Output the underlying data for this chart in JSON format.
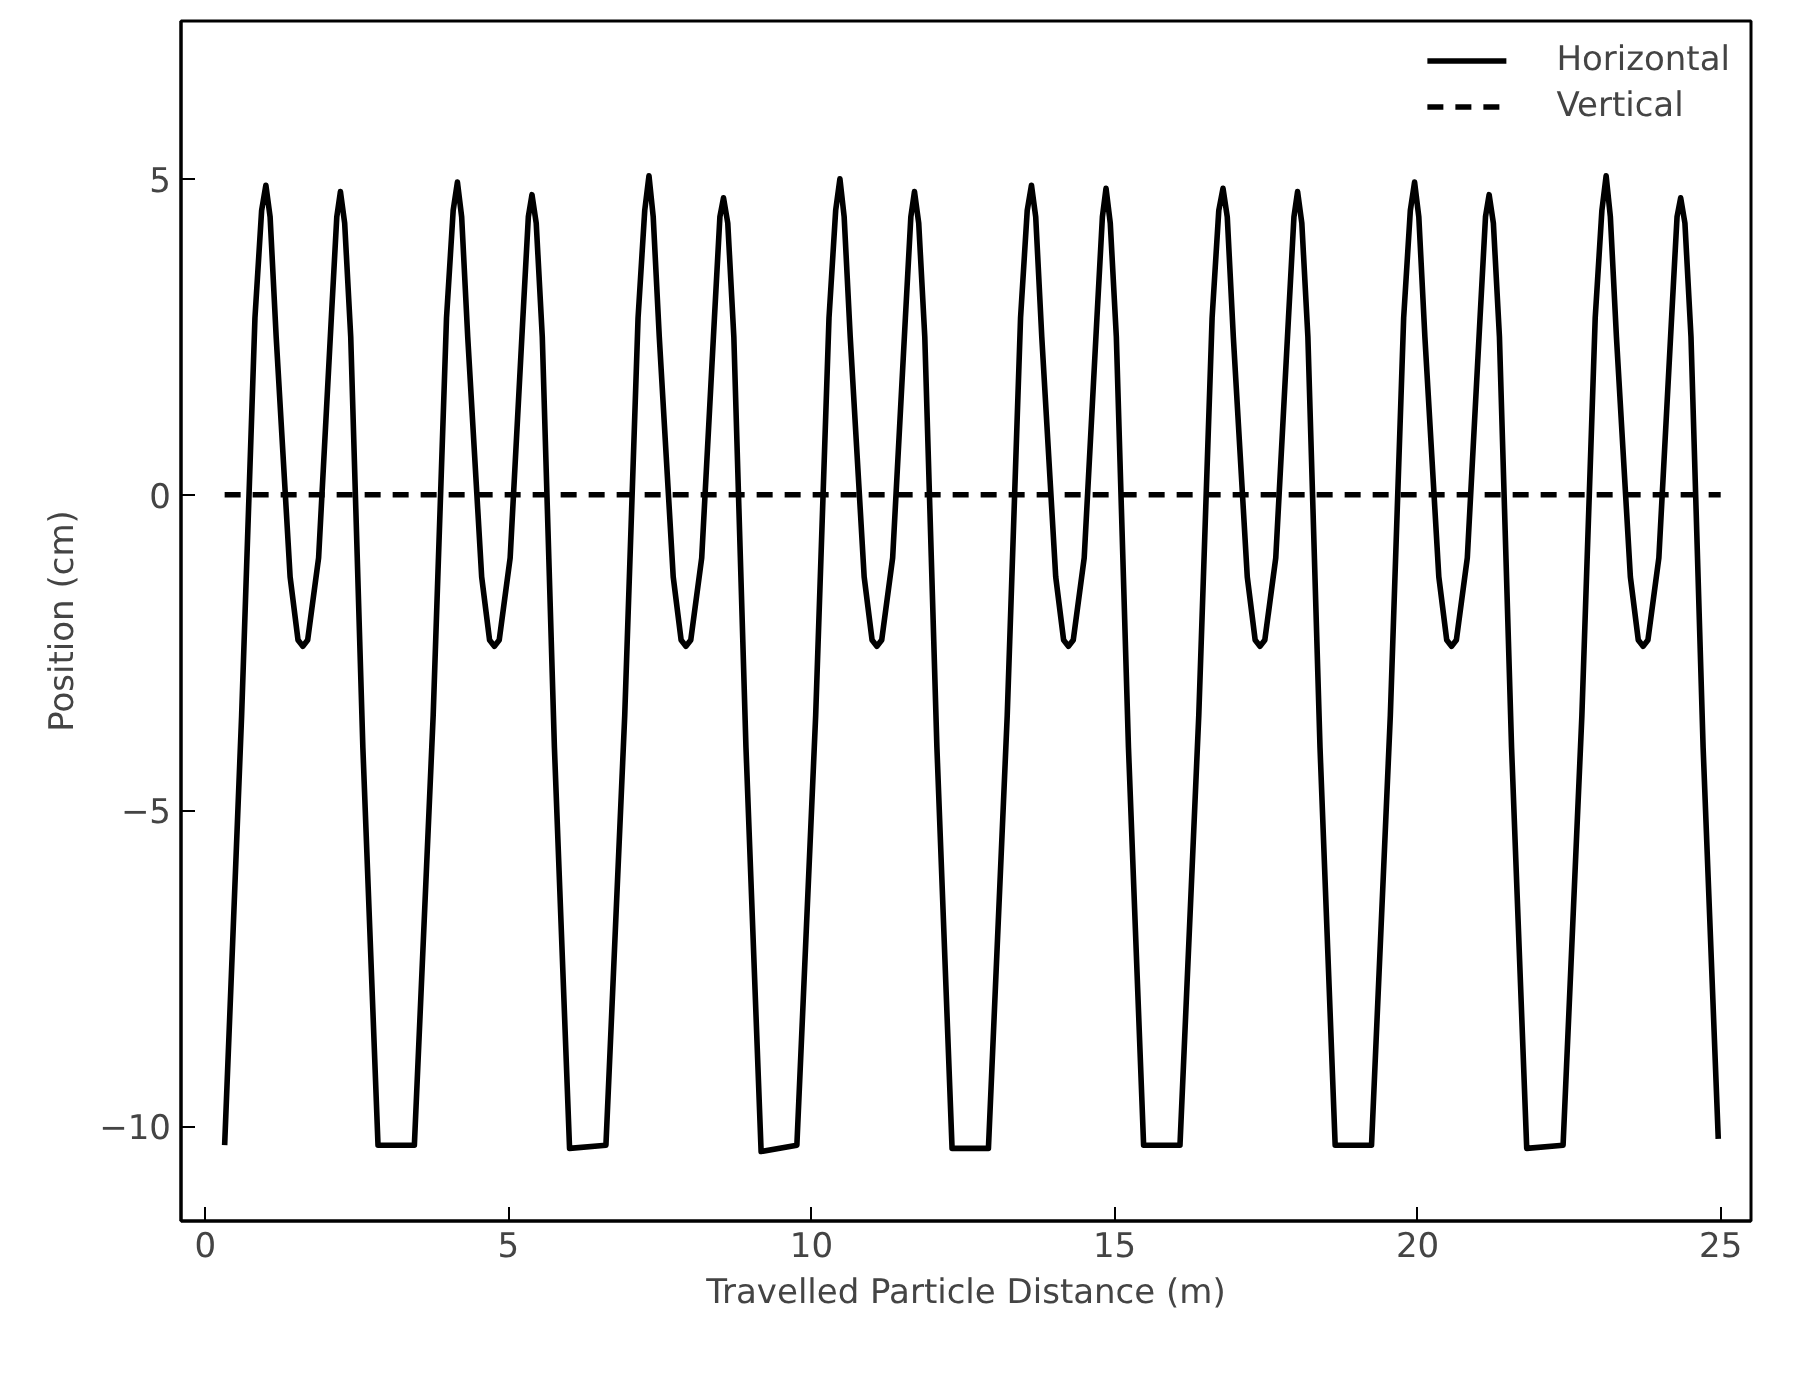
{
  "chart_data": {
    "type": "line",
    "xlabel": "Travelled Particle Distance (m)",
    "ylabel": "Position (cm)",
    "xlim": [
      -0.4,
      25.5
    ],
    "ylim": [
      -11.5,
      7.5
    ],
    "xticks": [
      0,
      5,
      10,
      15,
      20,
      25
    ],
    "yticks": [
      -10,
      -5,
      0,
      5
    ],
    "grid": false,
    "legend": "top right",
    "series": [
      {
        "name": "Horizontal",
        "color": "#000000",
        "line_style": "solid",
        "x": [
          0.32,
          0.6,
          0.82,
          0.93,
          1.0,
          1.07,
          1.17,
          1.4,
          1.53,
          1.61,
          1.69,
          1.87,
          2.08,
          2.17,
          2.23,
          2.3,
          2.4,
          2.6,
          2.85,
          3.45,
          3.76,
          3.98,
          4.09,
          4.16,
          4.23,
          4.33,
          4.56,
          4.69,
          4.77,
          4.85,
          5.03,
          5.24,
          5.33,
          5.39,
          5.46,
          5.56,
          5.76,
          6.01,
          6.61,
          6.92,
          7.14,
          7.25,
          7.32,
          7.39,
          7.49,
          7.72,
          7.85,
          7.93,
          8.01,
          8.19,
          8.4,
          8.49,
          8.55,
          8.62,
          8.72,
          8.92,
          9.17,
          9.76,
          10.07,
          10.29,
          10.4,
          10.47,
          10.54,
          10.64,
          10.87,
          11.0,
          11.08,
          11.16,
          11.34,
          11.55,
          11.64,
          11.7,
          11.77,
          11.87,
          12.07,
          12.32,
          12.92,
          13.23,
          13.45,
          13.56,
          13.63,
          13.7,
          13.8,
          14.03,
          14.16,
          14.24,
          14.32,
          14.5,
          14.71,
          14.8,
          14.86,
          14.93,
          15.03,
          15.23,
          15.48,
          16.08,
          16.39,
          16.61,
          16.72,
          16.79,
          16.86,
          16.96,
          17.19,
          17.32,
          17.4,
          17.48,
          17.66,
          17.87,
          17.96,
          18.02,
          18.09,
          18.19,
          18.39,
          18.64,
          19.24,
          19.55,
          19.77,
          19.88,
          19.95,
          20.02,
          20.12,
          20.35,
          20.48,
          20.56,
          20.64,
          20.82,
          21.03,
          21.12,
          21.18,
          21.25,
          21.35,
          21.55,
          21.8,
          22.4,
          22.71,
          22.93,
          23.04,
          23.11,
          23.18,
          23.28,
          23.51,
          23.64,
          23.72,
          23.8,
          23.98,
          24.19,
          24.28,
          24.34,
          24.41,
          24.51,
          24.71,
          24.96
        ],
        "values": [
          -10.3,
          -3.5,
          2.8,
          4.5,
          4.9,
          4.4,
          2.5,
          -1.3,
          -2.3,
          -2.4,
          -2.3,
          -1.0,
          2.8,
          4.4,
          4.8,
          4.3,
          2.5,
          -4.0,
          -10.3,
          -10.3,
          -3.5,
          2.8,
          4.5,
          4.95,
          4.4,
          2.5,
          -1.3,
          -2.3,
          -2.4,
          -2.3,
          -1.0,
          2.8,
          4.4,
          4.75,
          4.3,
          2.5,
          -4.0,
          -10.35,
          -10.3,
          -3.5,
          2.8,
          4.5,
          5.05,
          4.4,
          2.5,
          -1.3,
          -2.3,
          -2.4,
          -2.3,
          -1.0,
          2.8,
          4.4,
          4.7,
          4.3,
          2.5,
          -4.0,
          -10.4,
          -10.3,
          -3.5,
          2.8,
          4.5,
          5.0,
          4.4,
          2.5,
          -1.3,
          -2.3,
          -2.4,
          -2.3,
          -1.0,
          2.8,
          4.4,
          4.8,
          4.3,
          2.5,
          -4.0,
          -10.35,
          -10.35,
          -3.5,
          2.8,
          4.5,
          4.9,
          4.4,
          2.5,
          -1.3,
          -2.3,
          -2.4,
          -2.3,
          -1.0,
          2.8,
          4.4,
          4.85,
          4.3,
          2.5,
          -4.0,
          -10.3,
          -10.3,
          -3.5,
          2.8,
          4.5,
          4.85,
          4.4,
          2.5,
          -1.3,
          -2.3,
          -2.4,
          -2.3,
          -1.0,
          2.8,
          4.4,
          4.8,
          4.3,
          2.5,
          -4.0,
          -10.3,
          -10.3,
          -3.5,
          2.8,
          4.5,
          4.95,
          4.4,
          2.5,
          -1.3,
          -2.3,
          -2.4,
          -2.3,
          -1.0,
          2.8,
          4.4,
          4.75,
          4.3,
          2.5,
          -4.0,
          -10.35,
          -10.3,
          -3.5,
          2.8,
          4.5,
          5.05,
          4.4,
          2.5,
          -1.3,
          -2.3,
          -2.4,
          -2.3,
          -1.0,
          2.8,
          4.4,
          4.7,
          4.3,
          2.5,
          -4.0,
          -10.2
        ]
      },
      {
        "name": "Vertical",
        "color": "#000000",
        "line_style": "dashed",
        "x": [
          0.32,
          25.0
        ],
        "values": [
          0,
          0
        ]
      }
    ]
  }
}
